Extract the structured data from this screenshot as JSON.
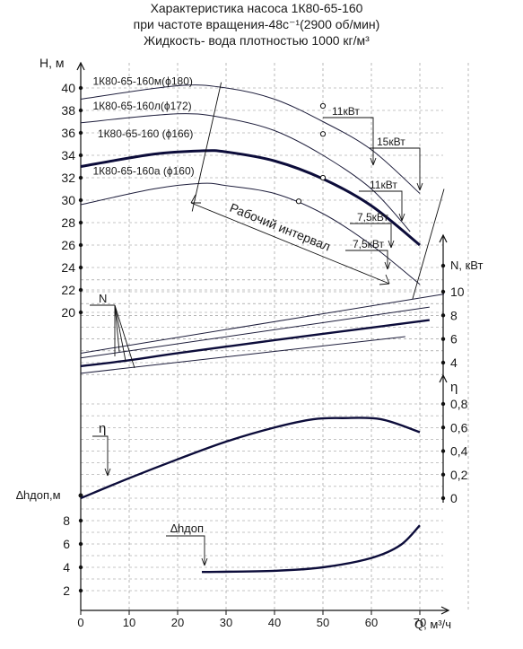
{
  "title_lines": [
    "Характеристика насоса 1К80-65-160",
    "при частоте вращения-48с⁻¹(2900 об/мин)",
    "Жидкость- вода плотностью 1000 кг/м³"
  ],
  "chart_data": {
    "type": "line",
    "x": {
      "label": "Q, м³/ч",
      "range": [
        0,
        80
      ],
      "ticks": [
        "0",
        "10",
        "20",
        "30",
        "40",
        "50",
        "60",
        "70"
      ]
    },
    "head": {
      "ylabel": "H, м",
      "range": [
        18,
        41
      ],
      "ticks": [
        "20",
        "22",
        "24",
        "26",
        "28",
        "30",
        "32",
        "34",
        "36",
        "38",
        "40"
      ],
      "series": [
        {
          "name": "1К80-65-160м(ϕ180)",
          "bold": false,
          "points": [
            [
              0,
              39.0
            ],
            [
              20,
              40.2
            ],
            [
              30,
              40.0
            ],
            [
              40,
              39.0
            ],
            [
              50,
              37.0
            ],
            [
              60,
              34.5
            ],
            [
              70,
              30.6
            ]
          ]
        },
        {
          "name": "1К80-65-160л(ϕ172)",
          "bold": false,
          "points": [
            [
              0,
              36.9
            ],
            [
              20,
              37.7
            ],
            [
              30,
              37.3
            ],
            [
              40,
              36.2
            ],
            [
              50,
              34.0
            ],
            [
              60,
              31.0
            ],
            [
              68,
              27.2
            ]
          ]
        },
        {
          "name": "1К80-65-160 (ϕ166)",
          "bold": true,
          "points": [
            [
              0,
              33.0
            ],
            [
              15,
              34.1
            ],
            [
              25,
              34.4
            ],
            [
              30,
              34.3
            ],
            [
              40,
              33.5
            ],
            [
              50,
              31.9
            ],
            [
              60,
              29.5
            ],
            [
              70,
              26.0
            ]
          ]
        },
        {
          "name": "1К80-65-160а (ϕ160)",
          "bold": false,
          "points": [
            [
              0,
              29.6
            ],
            [
              15,
              31.0
            ],
            [
              25,
              31.5
            ],
            [
              30,
              31.3
            ],
            [
              40,
              30.6
            ],
            [
              50,
              28.8
            ],
            [
              60,
              26.0
            ],
            [
              70,
              22.5
            ]
          ]
        }
      ],
      "markers": [
        [
          50,
          38.4
        ],
        [
          50,
          35.9
        ],
        [
          50,
          32.0
        ],
        [
          45,
          29.9
        ]
      ],
      "boundary_left": [
        [
          23,
          29.0
        ],
        [
          29,
          40.5
        ]
      ],
      "boundary_right": [
        [
          68.5,
          21.2
        ],
        [
          75,
          31.0
        ]
      ],
      "label_pos": [
        [
          2.5,
          40.3
        ],
        [
          2.5,
          38.1
        ],
        [
          3.5,
          35.6
        ],
        [
          2.5,
          32.3
        ]
      ]
    },
    "power": {
      "ylabel": "N, кВт",
      "range": [
        0,
        12
      ],
      "ticks": [
        "4",
        "6",
        "8",
        "10"
      ],
      "series": [
        {
          "bold": false,
          "points": [
            [
              0,
              4.8
            ],
            [
              75,
              9.8
            ]
          ]
        },
        {
          "bold": false,
          "points": [
            [
              0,
              4.4
            ],
            [
              72,
              8.7
            ]
          ]
        },
        {
          "bold": true,
          "points": [
            [
              0,
              3.7
            ],
            [
              10,
              4.2
            ],
            [
              20,
              4.8
            ],
            [
              40,
              5.9
            ],
            [
              55,
              6.7
            ],
            [
              72,
              7.6
            ]
          ]
        },
        {
          "bold": false,
          "points": [
            [
              0,
              3.1
            ],
            [
              67,
              6.2
            ]
          ]
        }
      ],
      "label": "N"
    },
    "efficiency": {
      "ylabel": "η",
      "range": [
        0,
        0.9
      ],
      "ticks": [
        "0",
        "0,2",
        "0,4",
        "0,6",
        "0,8"
      ],
      "series": [
        {
          "name": "η",
          "points": [
            [
              0,
              0.0
            ],
            [
              10,
              0.17
            ],
            [
              20,
              0.33
            ],
            [
              30,
              0.48
            ],
            [
              40,
              0.6
            ],
            [
              48,
              0.67
            ],
            [
              54,
              0.68
            ],
            [
              62,
              0.67
            ],
            [
              70,
              0.56
            ]
          ]
        }
      ],
      "label": "η"
    },
    "npsh": {
      "ylabel": "∆hдоп,м",
      "range": [
        0,
        9.8
      ],
      "ticks": [
        "2",
        "4",
        "6",
        "8"
      ],
      "series": [
        {
          "name": "∆hдоп",
          "points": [
            [
              25,
              3.6
            ],
            [
              40,
              3.7
            ],
            [
              50,
              4.0
            ],
            [
              60,
              4.8
            ],
            [
              66,
              5.9
            ],
            [
              70,
              7.6
            ]
          ]
        }
      ],
      "label": "∆hдоп"
    },
    "power_callouts": [
      "11кВт",
      "15кВт",
      "11кВт",
      "7,5кВт",
      "7,5кВт"
    ],
    "interval_label": "Рабочий интервал"
  }
}
